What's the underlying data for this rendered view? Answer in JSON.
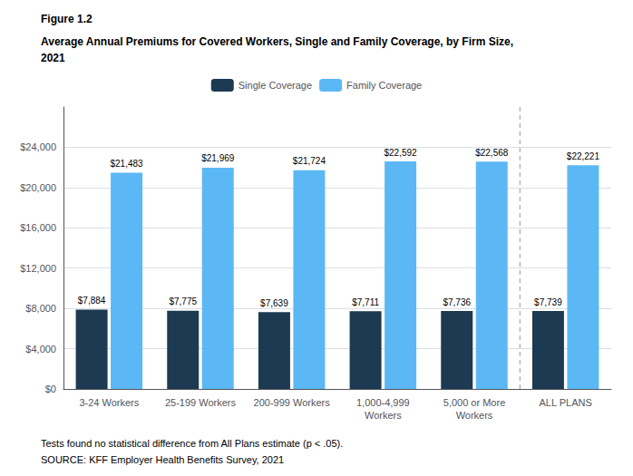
{
  "chart_data": {
    "type": "bar",
    "figure_label": "Figure 1.2",
    "title": "Average Annual Premiums for Covered Workers, Single and Family Coverage, by Firm Size,\n2021",
    "footnotes": [
      "Tests found no statistical difference from All Plans estimate (p < .05).",
      "SOURCE: KFF Employer Health Benefits Survey, 2021"
    ],
    "categories": [
      "3-24 Workers",
      "25-199 Workers",
      "200-999 Workers",
      "1,000-4,999\nWorkers",
      "5,000 or More\nWorkers",
      "ALL PLANS"
    ],
    "series": [
      {
        "name": "Single Coverage",
        "color": "#1c3a52",
        "values": [
          7884,
          7775,
          7639,
          7711,
          7736,
          7739
        ],
        "value_labels": [
          "$7,884",
          "$7,775",
          "$7,639",
          "$7,711",
          "$7,736",
          "$7,739"
        ]
      },
      {
        "name": "Family Coverage",
        "color": "#5bb8f5",
        "values": [
          21483,
          21969,
          21724,
          22592,
          22568,
          22221
        ],
        "value_labels": [
          "$21,483",
          "$21,969",
          "$21,724",
          "$22,592",
          "$22,568",
          "$22,221"
        ]
      }
    ],
    "data_labels": true,
    "separator": {
      "before": "ALL PLANS",
      "color": "#aaaaaa",
      "line_style": "dashed"
    },
    "ylim": [
      0,
      28000
    ],
    "yticks": [
      {
        "value": 0,
        "label": "$0"
      },
      {
        "value": 4000,
        "label": "$4,000"
      },
      {
        "value": 8000,
        "label": "$8,000"
      },
      {
        "value": 12000,
        "label": "$12,000"
      },
      {
        "value": 16000,
        "label": "$16,000"
      },
      {
        "value": 20000,
        "label": "$20,000"
      },
      {
        "value": 24000,
        "label": "$24,000"
      }
    ],
    "grid": true,
    "legend": "top"
  }
}
